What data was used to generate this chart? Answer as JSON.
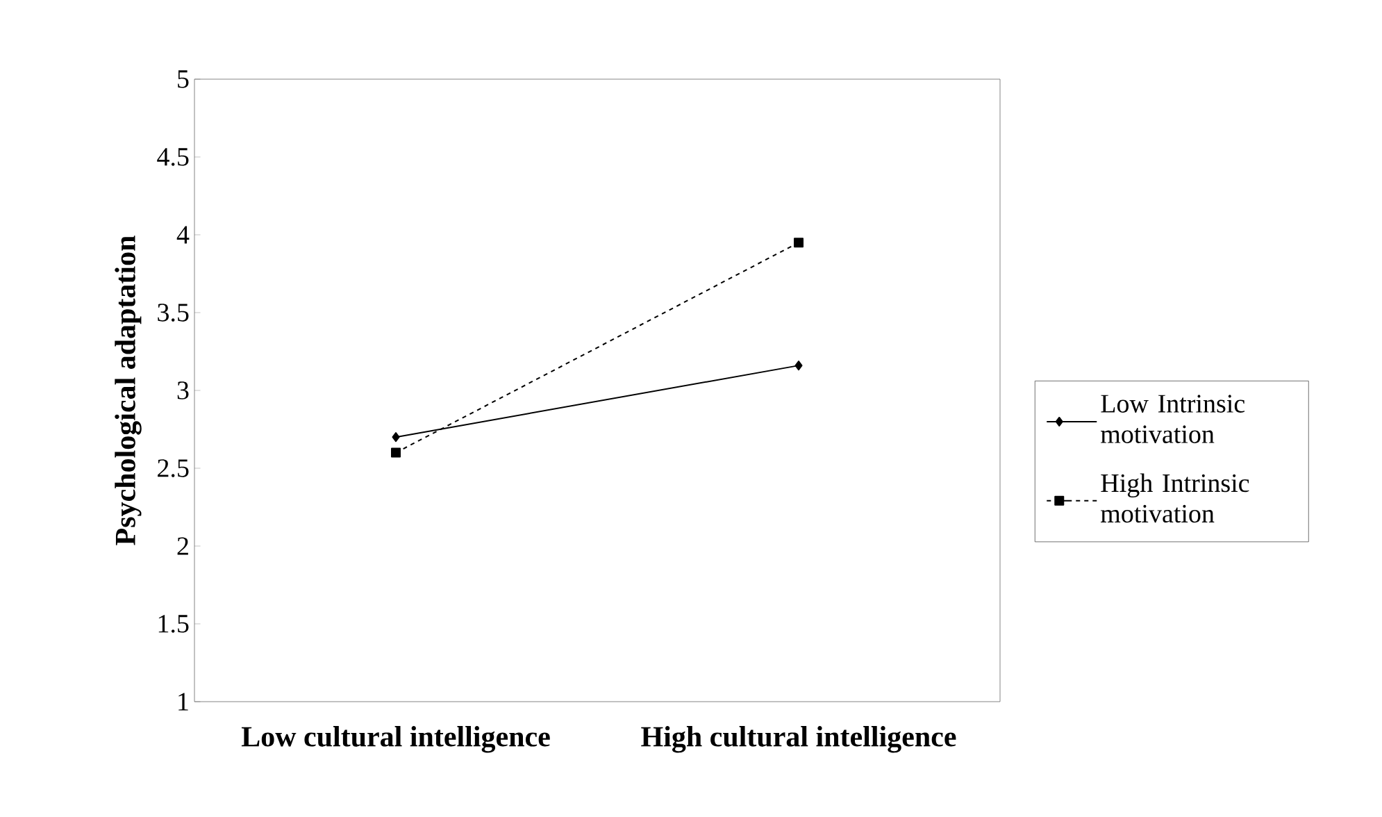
{
  "chart_data": {
    "type": "line",
    "ylabel": "Psychological adaptation",
    "categories": [
      "Low cultural intelligence",
      "High cultural intelligence"
    ],
    "series": [
      {
        "name": "Low Intrinsic motivation",
        "color": "#000000",
        "values": [
          2.7,
          3.16
        ],
        "marker": "diamond",
        "line_style": "solid"
      },
      {
        "name": "High Intrinsic motivation",
        "color": "#000000",
        "values": [
          2.6,
          3.95
        ],
        "marker": "square",
        "line_style": "dashed"
      }
    ],
    "ylim": [
      1,
      5
    ],
    "yticks": [
      1,
      1.5,
      2,
      2.5,
      3,
      3.5,
      4,
      4.5,
      5
    ],
    "grid": false,
    "legend": "right"
  }
}
